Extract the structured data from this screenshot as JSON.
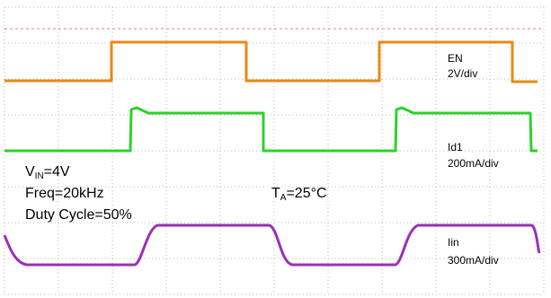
{
  "labels": {
    "en": {
      "name": "EN",
      "scale": "2V/div"
    },
    "id1": {
      "name": "Id1",
      "scale": "200mA/div"
    },
    "iin": {
      "name": "Iin",
      "scale": "300mA/div"
    },
    "vin": {
      "symbol": "V",
      "subscript": "IN",
      "value": "=4V"
    },
    "freq": "Freq=20kHz",
    "duty": "Duty Cycle=50%",
    "ta": {
      "symbol": "T",
      "subscript": "A",
      "value": "=25°C"
    }
  }
}
